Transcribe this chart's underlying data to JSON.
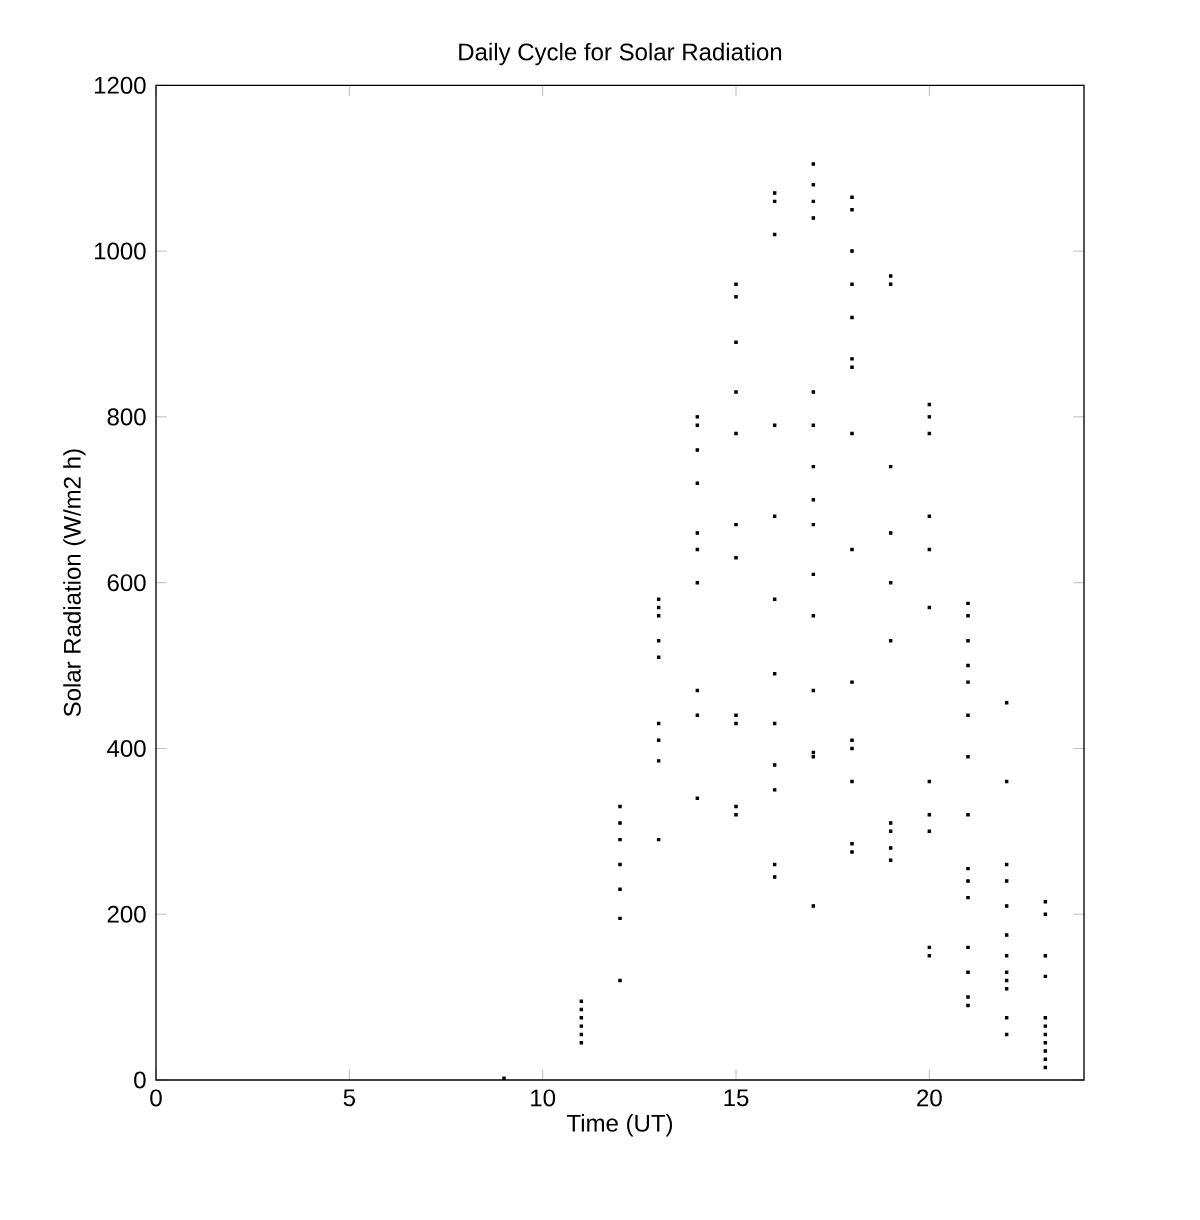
{
  "chart_data": {
    "type": "scatter",
    "title": "Daily Cycle for Solar Radiation",
    "xlabel": "Time (UT)",
    "ylabel": "Solar Radiation (W/m2 h)",
    "x": [
      9,
      11,
      11,
      11,
      11,
      11,
      11,
      12,
      12,
      12,
      12,
      12,
      12,
      12,
      13,
      13,
      13,
      13,
      13,
      13,
      13,
      13,
      13,
      14,
      14,
      14,
      14,
      14,
      14,
      14,
      14,
      14,
      14,
      15,
      15,
      15,
      15,
      15,
      15,
      15,
      15,
      15,
      15,
      15,
      16,
      16,
      16,
      16,
      16,
      16,
      16,
      16,
      16,
      16,
      16,
      16,
      17,
      17,
      17,
      17,
      17,
      17,
      17,
      17,
      17,
      17,
      17,
      17,
      17,
      17,
      17,
      18,
      18,
      18,
      18,
      18,
      18,
      18,
      18,
      18,
      18,
      18,
      18,
      18,
      18,
      18,
      19,
      19,
      19,
      19,
      19,
      19,
      19,
      19,
      19,
      19,
      20,
      20,
      20,
      20,
      20,
      20,
      20,
      20,
      20,
      20,
      20,
      21,
      21,
      21,
      21,
      21,
      21,
      21,
      21,
      21,
      21,
      21,
      21,
      21,
      21,
      21,
      22,
      22,
      22,
      22,
      22,
      22,
      22,
      22,
      22,
      22,
      22,
      22,
      23,
      23,
      23,
      23,
      23,
      23,
      23,
      23,
      23,
      23,
      23
    ],
    "values": [
      2,
      45,
      55,
      65,
      75,
      85,
      95,
      120,
      195,
      230,
      260,
      290,
      310,
      330,
      290,
      385,
      410,
      430,
      510,
      530,
      560,
      570,
      580,
      340,
      440,
      470,
      600,
      640,
      660,
      720,
      760,
      790,
      800,
      320,
      330,
      430,
      440,
      630,
      670,
      780,
      830,
      890,
      945,
      960,
      245,
      260,
      350,
      380,
      430,
      490,
      580,
      680,
      790,
      1020,
      1060,
      1070,
      210,
      390,
      395,
      470,
      560,
      610,
      670,
      700,
      740,
      790,
      830,
      1040,
      1060,
      1080,
      1105,
      275,
      285,
      360,
      400,
      410,
      480,
      640,
      780,
      860,
      870,
      920,
      960,
      1000,
      1050,
      1065,
      265,
      280,
      300,
      310,
      530,
      600,
      660,
      740,
      960,
      970,
      150,
      160,
      300,
      320,
      360,
      570,
      640,
      680,
      780,
      800,
      815,
      90,
      100,
      130,
      160,
      220,
      240,
      255,
      320,
      390,
      440,
      480,
      500,
      530,
      560,
      575,
      55,
      75,
      110,
      120,
      130,
      150,
      175,
      210,
      240,
      260,
      360,
      455,
      15,
      25,
      35,
      45,
      55,
      65,
      75,
      125,
      150,
      200,
      215
    ],
    "color": "#000000",
    "marker": "square",
    "xlim": [
      0,
      24
    ],
    "xticks": [
      0,
      5,
      10,
      15,
      20
    ],
    "ylim": [
      0,
      1200
    ],
    "yticks": [
      0,
      200,
      400,
      600,
      800,
      1000,
      1200
    ]
  }
}
